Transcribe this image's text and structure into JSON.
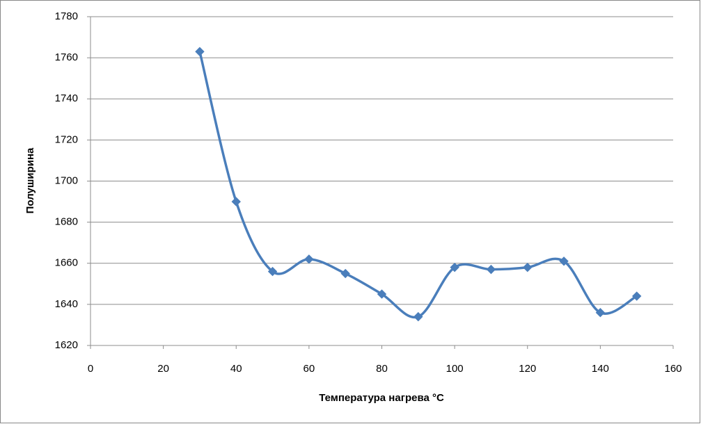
{
  "chart_data": {
    "type": "line",
    "x": [
      30,
      40,
      50,
      60,
      70,
      80,
      90,
      100,
      110,
      120,
      130,
      140,
      150
    ],
    "series": [
      {
        "color": "#4a7ebb",
        "values": [
          1763,
          1690,
          1656,
          1662,
          1655,
          1645,
          1634,
          1658,
          1657,
          1658,
          1661,
          1636,
          1644
        ]
      }
    ],
    "xlabel": "Температура нагрева °C",
    "ylabel": "Полуширина",
    "xlim": [
      0,
      160
    ],
    "xticks": [
      0,
      20,
      40,
      60,
      80,
      100,
      120,
      140,
      160
    ],
    "ylim": [
      1620,
      1780
    ],
    "yticks": [
      1620,
      1640,
      1660,
      1680,
      1700,
      1720,
      1740,
      1760,
      1780
    ],
    "grid": true,
    "smooth": true,
    "marker": "diamond"
  }
}
